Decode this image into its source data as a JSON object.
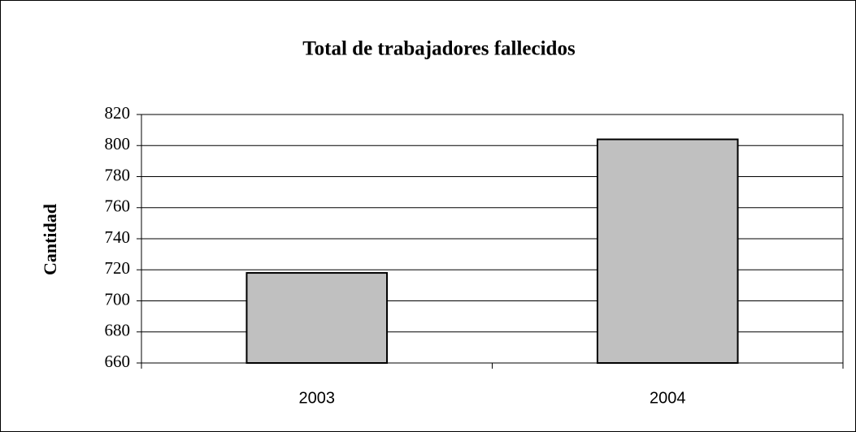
{
  "chart_data": {
    "type": "bar",
    "title": "Total de trabajadores fallecidos",
    "y_label": "Cantidad",
    "categories": [
      "2003",
      "2004"
    ],
    "values": [
      718,
      804
    ],
    "color": "#c0c0c0",
    "ylim": [
      660,
      820
    ],
    "yticks": [
      660,
      680,
      700,
      720,
      740,
      760,
      780,
      800,
      820
    ],
    "grid": true
  }
}
